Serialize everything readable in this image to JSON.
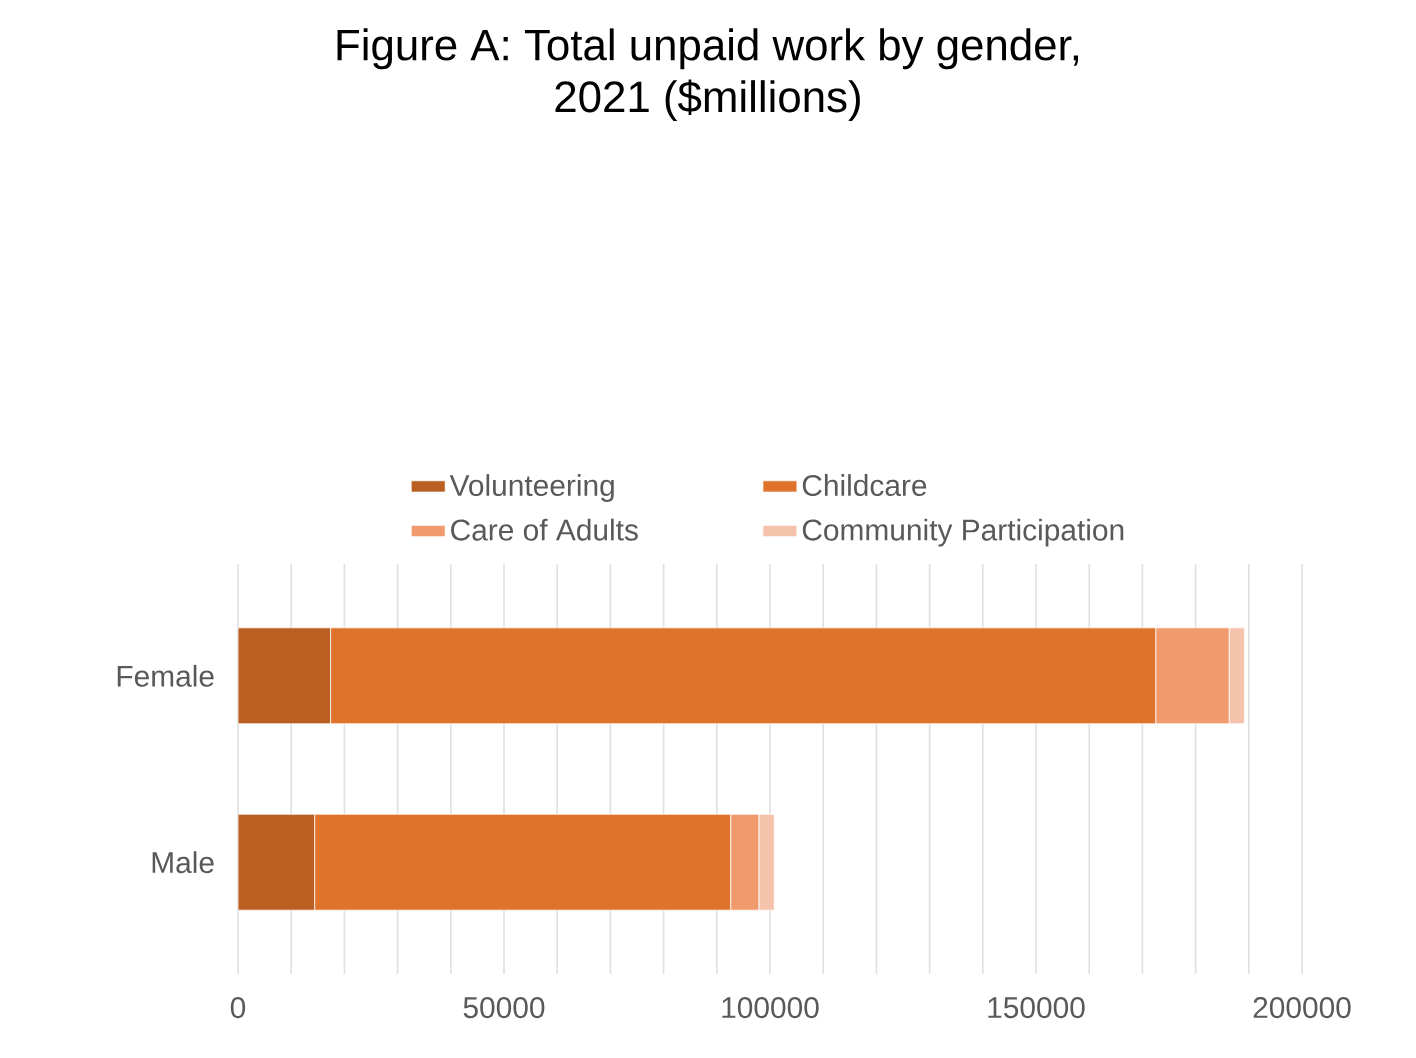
{
  "chart_data": {
    "type": "bar",
    "orientation": "horizontal",
    "stacked": true,
    "title": "Figure A: Total unpaid work by gender,\n2021 ($millions)",
    "categories": [
      "Female",
      "Male"
    ],
    "series": [
      {
        "name": "Volunteering",
        "color": "#b95f21",
        "values": [
          17400,
          14400
        ]
      },
      {
        "name": "Childcare",
        "color": "#df732c",
        "values": [
          155100,
          78200
        ]
      },
      {
        "name": "Care of Adults",
        "color": "#f09a6e",
        "values": [
          13800,
          5300
        ]
      },
      {
        "name": "Community Participation",
        "color": "#f5c2ac",
        "values": [
          2900,
          2900
        ]
      }
    ],
    "xlim": [
      0,
      200000
    ],
    "xticks": [
      0,
      {
        "value": 10000,
        "label": null
      },
      {
        "value": 20000,
        "label": null
      },
      {
        "value": 30000,
        "label": null
      },
      {
        "value": 40000,
        "label": null
      },
      50000,
      {
        "value": 60000,
        "label": null
      },
      {
        "value": 70000,
        "label": null
      },
      {
        "value": 80000,
        "label": null
      },
      {
        "value": 90000,
        "label": null
      },
      100000,
      {
        "value": 110000,
        "label": null
      },
      {
        "value": 120000,
        "label": null
      },
      {
        "value": 130000,
        "label": null
      },
      {
        "value": 140000,
        "label": null
      },
      150000,
      {
        "value": 160000,
        "label": null
      },
      {
        "value": 170000,
        "label": null
      },
      {
        "value": 180000,
        "label": null
      },
      {
        "value": 190000,
        "label": null
      },
      200000
    ],
    "grid": "x",
    "legend": "top"
  }
}
